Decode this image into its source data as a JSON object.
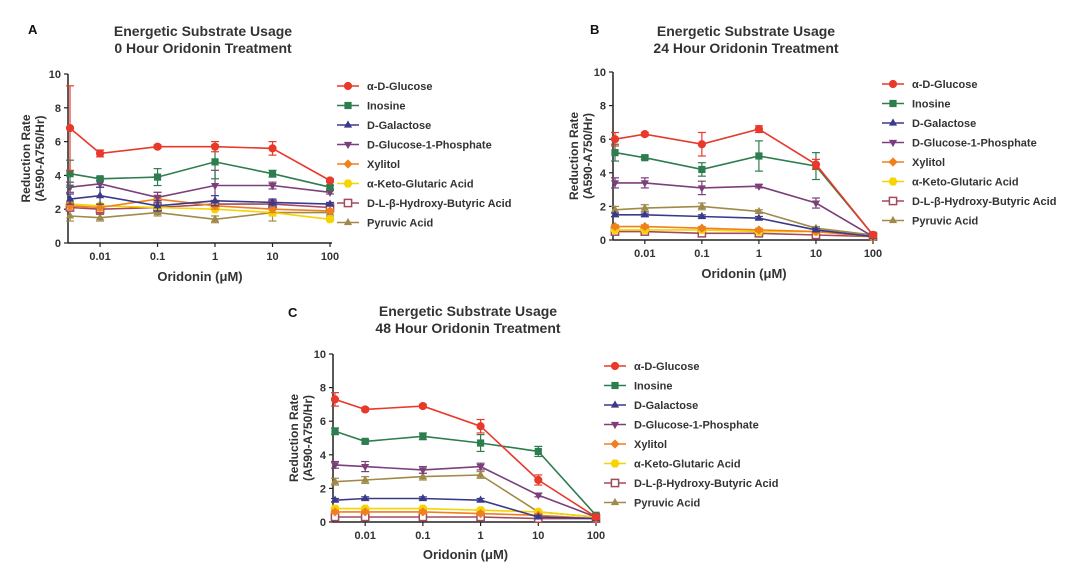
{
  "figure": {
    "panels": [
      "A",
      "B",
      "C"
    ]
  },
  "chart_data": [
    {
      "panel": "A",
      "type": "line",
      "title": "Energetic Substrate Usage",
      "subtitle": "0 Hour Oridonin Treatment",
      "xlabel": "Oridonin (μM)",
      "ylabel": "Reduction Rate",
      "ylabel2": "(A590-A750/Hr)",
      "xscale": "log",
      "x": [
        0.003,
        0.01,
        0.1,
        1,
        10,
        100
      ],
      "xticks": [
        "0.01",
        "0.1",
        "1",
        "10",
        "100"
      ],
      "xtick_values": [
        0.01,
        0.1,
        1,
        10,
        100
      ],
      "ylim": [
        0,
        10
      ],
      "yticks": [
        "0",
        "2",
        "4",
        "6",
        "8",
        "10"
      ],
      "legend_position": "right",
      "series": [
        {
          "name": "α-D-Glucose",
          "color": "#e8392b",
          "marker": "circle",
          "values": [
            6.8,
            5.3,
            5.7,
            5.7,
            5.6,
            3.7
          ],
          "errors": [
            2.5,
            0.2,
            0.1,
            0.3,
            0.4,
            0.1
          ]
        },
        {
          "name": "Inosine",
          "color": "#2e7d4f",
          "marker": "square",
          "values": [
            4.1,
            3.8,
            3.9,
            4.8,
            4.1,
            3.3
          ],
          "errors": [
            0.8,
            0.1,
            0.5,
            1.0,
            0.2,
            0.1
          ]
        },
        {
          "name": "D-Galactose",
          "color": "#3b3a8a",
          "marker": "triangle-up",
          "values": [
            2.6,
            2.8,
            2.2,
            2.5,
            2.4,
            2.3
          ],
          "errors": [
            0.3,
            0.5,
            0.3,
            0.3,
            0.2,
            0.1
          ]
        },
        {
          "name": "D-Glucose-1-Phosphate",
          "color": "#7b3f7a",
          "marker": "triangle-down",
          "values": [
            3.3,
            3.5,
            2.7,
            3.4,
            3.4,
            3.0
          ],
          "errors": [
            0.3,
            0.2,
            0.3,
            0.9,
            0.2,
            0.1
          ]
        },
        {
          "name": "Xylitol",
          "color": "#f07f1e",
          "marker": "diamond",
          "values": [
            2.2,
            2.1,
            2.6,
            2.2,
            2.0,
            1.9
          ],
          "errors": [
            0.2,
            0.2,
            0.4,
            0.2,
            0.2,
            0.1
          ]
        },
        {
          "name": "α-Keto-Glutaric Acid",
          "color": "#f5d400",
          "marker": "hexagon",
          "values": [
            2.3,
            2.2,
            2.1,
            2.0,
            1.8,
            1.4
          ],
          "errors": [
            0.1,
            0.1,
            0.1,
            0.1,
            0.2,
            0.1
          ]
        },
        {
          "name": "D-L-β-Hydroxy-Butyric Acid",
          "color": "#a34a5e",
          "marker": "open-square",
          "values": [
            2.1,
            2.0,
            2.1,
            2.3,
            2.3,
            2.1
          ],
          "errors": [
            0.2,
            0.3,
            0.2,
            0.2,
            0.3,
            0.1
          ]
        },
        {
          "name": "Pyruvic Acid",
          "color": "#a08a4a",
          "marker": "triangle-up",
          "values": [
            1.6,
            1.5,
            1.8,
            1.4,
            1.8,
            1.8
          ],
          "errors": [
            0.3,
            0.2,
            0.2,
            0.2,
            0.5,
            0.2
          ]
        }
      ]
    },
    {
      "panel": "B",
      "type": "line",
      "title": "Energetic Substrate Usage",
      "subtitle": "24 Hour Oridonin Treatment",
      "xlabel": "Oridonin (μM)",
      "ylabel": "Reduction Rate",
      "ylabel2": "(A590-A750/Hr)",
      "xscale": "log",
      "x": [
        0.003,
        0.01,
        0.1,
        1,
        10,
        100
      ],
      "xticks": [
        "0.01",
        "0.1",
        "1",
        "10",
        "100"
      ],
      "xtick_values": [
        0.01,
        0.1,
        1,
        10,
        100
      ],
      "ylim": [
        0,
        10
      ],
      "yticks": [
        "0",
        "2",
        "4",
        "6",
        "8",
        "10"
      ],
      "legend_position": "right",
      "series": [
        {
          "name": "α-D-Glucose",
          "color": "#e8392b",
          "marker": "circle",
          "values": [
            6.0,
            6.3,
            5.7,
            6.6,
            4.5,
            0.3
          ],
          "errors": [
            0.4,
            0.1,
            0.7,
            0.2,
            0.3,
            0.1
          ]
        },
        {
          "name": "Inosine",
          "color": "#2e7d4f",
          "marker": "square",
          "values": [
            5.2,
            4.9,
            4.2,
            5.0,
            4.4,
            0.3
          ],
          "errors": [
            0.5,
            0.1,
            0.4,
            0.9,
            0.8,
            0.1
          ]
        },
        {
          "name": "D-Galactose",
          "color": "#3b3a8a",
          "marker": "triangle-up",
          "values": [
            1.5,
            1.5,
            1.4,
            1.3,
            0.6,
            0.2
          ],
          "errors": [
            0.1,
            0.1,
            0.1,
            0.1,
            0.1,
            0.05
          ]
        },
        {
          "name": "D-Glucose-1-Phosphate",
          "color": "#7b3f7a",
          "marker": "triangle-down",
          "values": [
            3.4,
            3.4,
            3.1,
            3.2,
            2.2,
            0.2
          ],
          "errors": [
            0.3,
            0.3,
            0.4,
            0.1,
            0.3,
            0.05
          ]
        },
        {
          "name": "Xylitol",
          "color": "#f07f1e",
          "marker": "diamond",
          "values": [
            0.8,
            0.8,
            0.7,
            0.6,
            0.5,
            0.2
          ],
          "errors": [
            0.1,
            0.1,
            0.1,
            0.1,
            0.1,
            0.05
          ]
        },
        {
          "name": "α-Keto-Glutaric Acid",
          "color": "#f5d400",
          "marker": "hexagon",
          "values": [
            0.6,
            0.6,
            0.6,
            0.5,
            0.5,
            0.2
          ],
          "errors": [
            0.1,
            0.1,
            0.1,
            0.1,
            0.1,
            0.05
          ]
        },
        {
          "name": "D-L-β-Hydroxy-Butyric Acid",
          "color": "#a34a5e",
          "marker": "open-square",
          "values": [
            0.5,
            0.5,
            0.4,
            0.4,
            0.3,
            0.2
          ],
          "errors": [
            0.1,
            0.1,
            0.1,
            0.1,
            0.1,
            0.05
          ]
        },
        {
          "name": "Pyruvic Acid",
          "color": "#a08a4a",
          "marker": "triangle-up",
          "values": [
            1.8,
            1.9,
            2.0,
            1.7,
            0.7,
            0.3
          ],
          "errors": [
            0.2,
            0.2,
            0.2,
            0.1,
            0.1,
            0.05
          ]
        }
      ]
    },
    {
      "panel": "C",
      "type": "line",
      "title": "Energetic Substrate Usage",
      "subtitle": "48 Hour Oridonin Treatment",
      "xlabel": "Oridonin (μM)",
      "ylabel": "Reduction Rate",
      "ylabel2": "(A590-A750/Hr)",
      "xscale": "log",
      "x": [
        0.003,
        0.01,
        0.1,
        1,
        10,
        100
      ],
      "xticks": [
        "0.01",
        "0.1",
        "1",
        "10",
        "100"
      ],
      "xtick_values": [
        0.01,
        0.1,
        1,
        10,
        100
      ],
      "ylim": [
        0,
        10
      ],
      "yticks": [
        "0",
        "2",
        "4",
        "6",
        "8",
        "10"
      ],
      "legend_position": "right",
      "series": [
        {
          "name": "α-D-Glucose",
          "color": "#e8392b",
          "marker": "circle",
          "values": [
            7.3,
            6.7,
            6.9,
            5.7,
            2.5,
            0.3
          ],
          "errors": [
            0.4,
            0.1,
            0.1,
            0.4,
            0.3,
            0.1
          ]
        },
        {
          "name": "Inosine",
          "color": "#2e7d4f",
          "marker": "square",
          "values": [
            5.4,
            4.8,
            5.1,
            4.7,
            4.2,
            0.4
          ],
          "errors": [
            0.2,
            0.1,
            0.2,
            0.5,
            0.3,
            0.1
          ]
        },
        {
          "name": "D-Galactose",
          "color": "#3b3a8a",
          "marker": "triangle-up",
          "values": [
            1.3,
            1.4,
            1.4,
            1.3,
            0.3,
            0.2
          ],
          "errors": [
            0.1,
            0.1,
            0.1,
            0.1,
            0.1,
            0.05
          ]
        },
        {
          "name": "D-Glucose-1-Phosphate",
          "color": "#7b3f7a",
          "marker": "triangle-down",
          "values": [
            3.4,
            3.3,
            3.1,
            3.3,
            1.6,
            0.3
          ],
          "errors": [
            0.2,
            0.3,
            0.2,
            0.2,
            0.1,
            0.05
          ]
        },
        {
          "name": "Xylitol",
          "color": "#f07f1e",
          "marker": "diamond",
          "values": [
            0.6,
            0.6,
            0.6,
            0.5,
            0.4,
            0.2
          ],
          "errors": [
            0.1,
            0.1,
            0.1,
            0.1,
            0.1,
            0.05
          ]
        },
        {
          "name": "α-Keto-Glutaric Acid",
          "color": "#f5d400",
          "marker": "hexagon",
          "values": [
            0.8,
            0.8,
            0.8,
            0.7,
            0.6,
            0.3
          ],
          "errors": [
            0.1,
            0.1,
            0.1,
            0.1,
            0.1,
            0.05
          ]
        },
        {
          "name": "D-L-β-Hydroxy-Butyric Acid",
          "color": "#a34a5e",
          "marker": "open-square",
          "values": [
            0.3,
            0.3,
            0.3,
            0.3,
            0.2,
            0.2
          ],
          "errors": [
            0.1,
            0.1,
            0.1,
            0.1,
            0.1,
            0.05
          ]
        },
        {
          "name": "Pyruvic Acid",
          "color": "#a08a4a",
          "marker": "triangle-up",
          "values": [
            2.4,
            2.5,
            2.7,
            2.8,
            0.6,
            0.3
          ],
          "errors": [
            0.2,
            0.2,
            0.2,
            0.2,
            0.1,
            0.05
          ]
        }
      ]
    }
  ]
}
